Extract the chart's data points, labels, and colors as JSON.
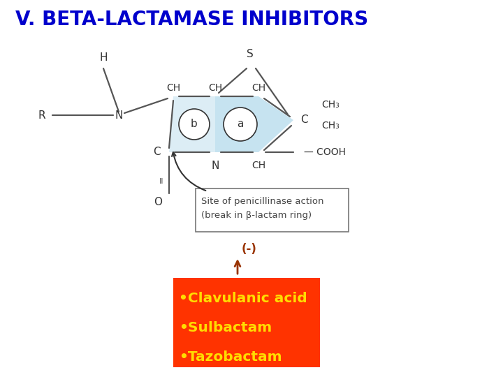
{
  "title": "V. BETA-LACTAMASE INHIBITORS",
  "title_color": "#0000CC",
  "title_fontsize": 20,
  "bg_color": "#ffffff",
  "bullet_items": [
    "Clavulanic acid",
    "Sulbactam",
    "Tazobactam"
  ],
  "bullet_box_color": "#FF3300",
  "bullet_text_color": "#FFDD00",
  "bullet_fontsize": 14.5,
  "inhibitor_label": "(-)",
  "inhibitor_arrow_color": "#993300",
  "ring_fill_color": "#A8D4E8",
  "ring_fill_alpha": 0.65,
  "struct_color": "#555555",
  "label_color": "#333333",
  "struct_lw": 1.6,
  "box_text_color": "#444444",
  "box_edge_color": "#777777"
}
